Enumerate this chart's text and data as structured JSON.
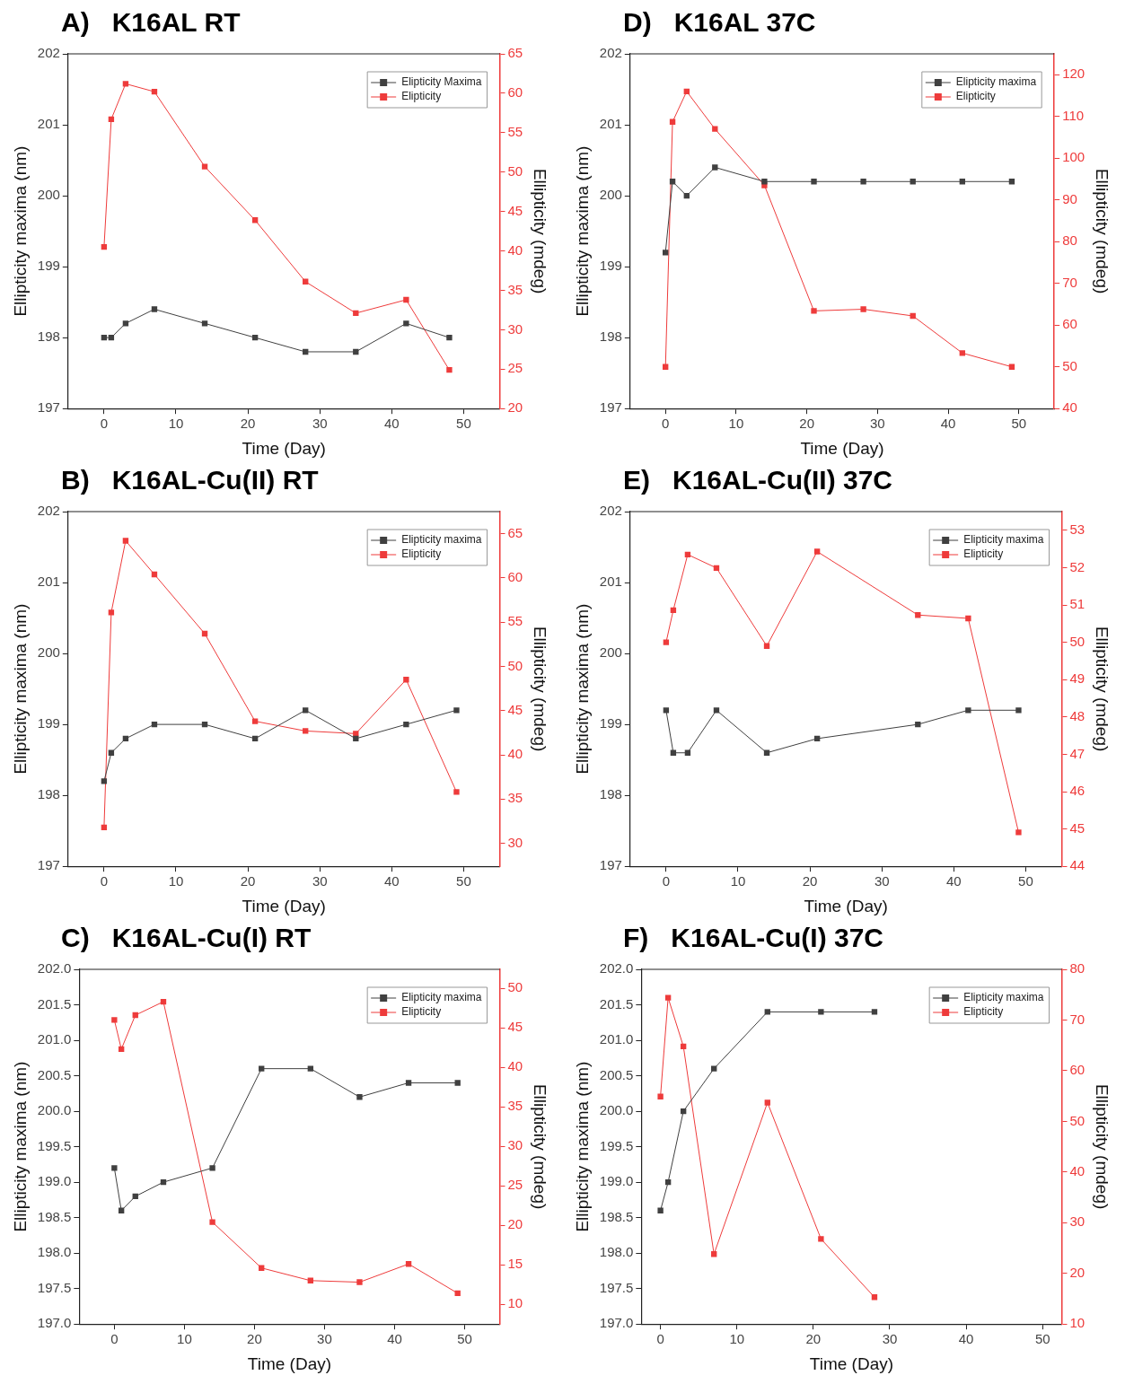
{
  "chart_data": [
    {
      "type": "line",
      "title": "A)   K16AL RT",
      "xlabel": "Time (Day)",
      "ylabel": "Ellipticity maxima (nm)",
      "y2label": "Ellipticity (mdeg)",
      "x": [
        0,
        1,
        3,
        7,
        14,
        21,
        28,
        35,
        42,
        48
      ],
      "xlim": [
        -5,
        55
      ],
      "xticks": [
        0,
        10,
        20,
        30,
        40,
        50
      ],
      "ylim": [
        197,
        202
      ],
      "yticks": [
        197,
        198,
        199,
        200,
        201,
        202
      ],
      "y2lim": [
        20,
        65
      ],
      "y2ticks": [
        20,
        25,
        30,
        35,
        40,
        45,
        50,
        55,
        60,
        65
      ],
      "grid": false,
      "legend": "top right",
      "marker": "square",
      "line_style": "solid",
      "series": [
        {
          "name": "Elipticity Maxima",
          "color": "#404040",
          "values": [
            198,
            198,
            198.2,
            198.4,
            198.2,
            198,
            197.8,
            197.8,
            198.2,
            198
          ]
        },
        {
          "name": "Elipticity",
          "color": "#ee3b3b",
          "axis": "y2",
          "values": [
            40.5,
            56.7,
            61.2,
            60.2,
            50.7,
            43.9,
            36.1,
            32.1,
            33.8,
            24.9
          ]
        }
      ]
    },
    {
      "type": "line",
      "title": "D)   K16AL 37C",
      "xlabel": "Time (Day)",
      "ylabel": "Ellipticity maxima (nm)",
      "y2label": "Ellipticity (mdeg)",
      "x": [
        0,
        1,
        3,
        7,
        14,
        21,
        28,
        35,
        42,
        49
      ],
      "xlim": [
        -5,
        55
      ],
      "xticks": [
        0,
        10,
        20,
        30,
        40,
        50
      ],
      "ylim": [
        197,
        202
      ],
      "yticks": [
        197,
        198,
        199,
        200,
        201,
        202
      ],
      "y2lim": [
        40,
        125
      ],
      "y2ticks": [
        40,
        50,
        60,
        70,
        80,
        90,
        100,
        110,
        120
      ],
      "grid": false,
      "legend": "top right",
      "marker": "square",
      "line_style": "solid",
      "series": [
        {
          "name": "Elipticity maxima",
          "color": "#404040",
          "values": [
            199.2,
            200.2,
            200,
            200.4,
            200.2,
            200.2,
            200.2,
            200.2,
            200.2,
            200.2
          ]
        },
        {
          "name": "Elipticity",
          "color": "#ee3b3b",
          "axis": "y2",
          "values": [
            50,
            108.7,
            116,
            107,
            93.5,
            63.4,
            63.8,
            62.2,
            53.3,
            50
          ]
        }
      ]
    },
    {
      "type": "line",
      "title": "B)   K16AL-Cu(II) RT",
      "xlabel": "Time (Day)",
      "ylabel": "Ellipticity maxima (nm)",
      "y2label": "Ellipticity (mdeg)",
      "x": [
        0,
        1,
        3,
        7,
        14,
        21,
        28,
        35,
        42,
        49
      ],
      "xlim": [
        -5,
        55
      ],
      "xticks": [
        0,
        10,
        20,
        30,
        40,
        50
      ],
      "ylim": [
        197,
        202
      ],
      "yticks": [
        197,
        198,
        199,
        200,
        201,
        202
      ],
      "y2lim": [
        27.4,
        67.5
      ],
      "y2ticks": [
        30,
        35,
        40,
        45,
        50,
        55,
        60,
        65
      ],
      "grid": false,
      "legend": "top right",
      "marker": "square",
      "line_style": "solid",
      "series": [
        {
          "name": "Elipticity maxima",
          "color": "#404040",
          "values": [
            198.2,
            198.6,
            198.8,
            199,
            199,
            198.8,
            199.2,
            198.8,
            199,
            199.2
          ]
        },
        {
          "name": "Elipticity",
          "color": "#ee3b3b",
          "axis": "y2",
          "values": [
            31.8,
            56.1,
            64.2,
            60.4,
            53.7,
            43.8,
            42.7,
            42.4,
            48.5,
            35.8
          ]
        }
      ]
    },
    {
      "type": "line",
      "title": "E)   K16AL-Cu(II) 37C",
      "xlabel": "Time (Day)",
      "ylabel": "Ellipticity maxima (nm)",
      "y2label": "Ellipticity (mdeg)",
      "x": [
        0,
        1,
        3,
        7,
        14,
        21,
        35,
        42,
        49
      ],
      "xlim": [
        -5,
        55
      ],
      "xticks": [
        0,
        10,
        20,
        30,
        40,
        50
      ],
      "ylim": [
        197,
        202
      ],
      "yticks": [
        197,
        198,
        199,
        200,
        201,
        202
      ],
      "y2lim": [
        44,
        53.5
      ],
      "y2ticks": [
        44,
        45,
        46,
        47,
        48,
        49,
        50,
        51,
        52,
        53
      ],
      "grid": false,
      "legend": "top right",
      "marker": "square",
      "line_style": "solid",
      "series": [
        {
          "name": "Elipticity maxima",
          "color": "#404040",
          "values": [
            199.2,
            198.6,
            198.6,
            199.2,
            198.6,
            198.8,
            199,
            199.2,
            199.2
          ]
        },
        {
          "name": "Elipticity",
          "color": "#ee3b3b",
          "axis": "y2",
          "values": [
            50,
            50.86,
            52.35,
            51.99,
            49.9,
            52.43,
            50.73,
            50.64,
            44.91
          ]
        }
      ]
    },
    {
      "type": "line",
      "title": "C)   K16AL-Cu(I) RT",
      "xlabel": "Time (Day)",
      "ylabel": "Ellipticity maxima (nm)",
      "y2label": "Ellipticity (mdeg)",
      "x": [
        0,
        1,
        3,
        7,
        14,
        21,
        28,
        35,
        42,
        49
      ],
      "xlim": [
        -5,
        55
      ],
      "xticks": [
        0,
        10,
        20,
        30,
        40,
        50
      ],
      "ylim": [
        197,
        202
      ],
      "yticks": [
        {
          "value": 197,
          "label": "197.0"
        },
        197.5,
        {
          "value": 198,
          "label": "198.0"
        },
        198.5,
        {
          "value": 199,
          "label": "199.0"
        },
        199.5,
        {
          "value": 200,
          "label": "200.0"
        },
        200.5,
        {
          "value": 201,
          "label": "201.0"
        },
        201.5,
        {
          "value": 202,
          "label": "202.0"
        }
      ],
      "y2lim": [
        7.5,
        52.4
      ],
      "y2ticks": [
        10,
        15,
        20,
        25,
        30,
        35,
        40,
        45,
        50
      ],
      "grid": false,
      "legend": "top right",
      "marker": "square",
      "line_style": "solid",
      "series": [
        {
          "name": "Elipticity maxima",
          "color": "#404040",
          "values": [
            199.2,
            198.6,
            198.8,
            199,
            199.2,
            200.6,
            200.6,
            200.2,
            200.4,
            200.4
          ]
        },
        {
          "name": "Elipticity",
          "color": "#ee3b3b",
          "axis": "y2",
          "values": [
            46,
            42.3,
            46.6,
            48.3,
            20.4,
            14.6,
            13,
            12.8,
            15.1,
            11.4
          ]
        }
      ]
    },
    {
      "type": "line",
      "title": "F)   K16AL-Cu(I) 37C",
      "xlabel": "Time (Day)",
      "ylabel": "Ellipticity maxima (nm)",
      "y2label": "Ellipticity (mdeg)",
      "x": [
        0,
        1,
        3,
        7,
        14,
        21,
        28
      ],
      "xlim": [
        -2.5,
        52.5
      ],
      "xticks": [
        0,
        10,
        20,
        30,
        40,
        50
      ],
      "ylim": [
        197,
        202
      ],
      "yticks": [
        {
          "value": 197,
          "label": "197.0"
        },
        197.5,
        {
          "value": 198,
          "label": "198.0"
        },
        198.5,
        {
          "value": 199,
          "label": "199.0"
        },
        199.5,
        {
          "value": 200,
          "label": "200.0"
        },
        200.5,
        {
          "value": 201,
          "label": "201.0"
        },
        201.5,
        {
          "value": 202,
          "label": "202.0"
        }
      ],
      "y2lim": [
        10,
        80
      ],
      "y2ticks": [
        10,
        20,
        30,
        40,
        50,
        60,
        70,
        80
      ],
      "grid": false,
      "legend": "top right",
      "marker": "square",
      "line_style": "solid",
      "series": [
        {
          "name": "Elipticity maxima",
          "color": "#404040",
          "values": [
            198.6,
            199,
            200,
            200.6,
            201.4,
            201.4,
            201.4
          ]
        },
        {
          "name": "Elipticity",
          "color": "#ee3b3b",
          "axis": "y2",
          "values": [
            54.9,
            74.4,
            64.8,
            23.8,
            53.7,
            26.8,
            15.3
          ]
        }
      ]
    }
  ]
}
